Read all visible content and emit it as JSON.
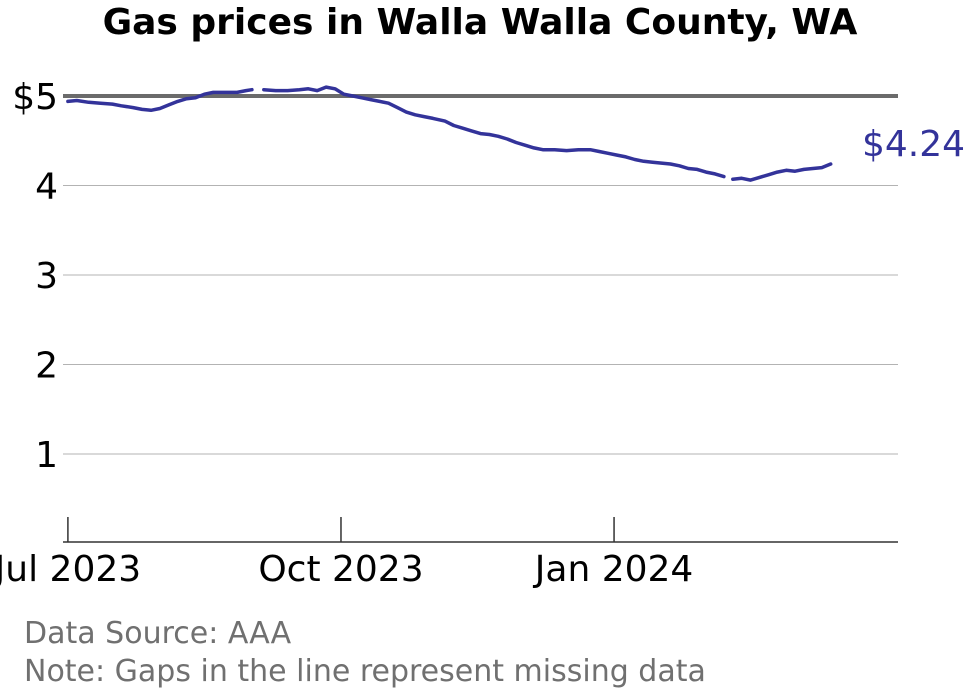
{
  "chart_data": {
    "type": "line",
    "title": "Gas prices in Walla Walla County, WA",
    "xlabel": "",
    "ylabel": "",
    "x_ticks": [
      "Jul 2023",
      "Oct 2023",
      "Jan 2024"
    ],
    "x_tick_dates": [
      "2023-07-01",
      "2023-10-01",
      "2024-01-01"
    ],
    "y_ticks": [
      "1",
      "2",
      "3",
      "4",
      "$5"
    ],
    "y_tick_values": [
      1,
      2,
      3,
      4,
      5
    ],
    "ylim": [
      0,
      5.5
    ],
    "xlim": [
      "2023-06-28",
      "2024-04-06"
    ],
    "reference_line": 5,
    "series": [
      {
        "color": "#33339a",
        "segments": [
          [
            [
              "2023-07-01",
              4.94
            ],
            [
              "2023-07-04",
              4.95
            ],
            [
              "2023-07-08",
              4.93
            ],
            [
              "2023-07-12",
              4.92
            ],
            [
              "2023-07-16",
              4.91
            ],
            [
              "2023-07-19",
              4.89
            ],
            [
              "2023-07-23",
              4.87
            ],
            [
              "2023-07-26",
              4.85
            ],
            [
              "2023-07-29",
              4.84
            ],
            [
              "2023-08-01",
              4.86
            ],
            [
              "2023-08-04",
              4.9
            ],
            [
              "2023-08-07",
              4.94
            ],
            [
              "2023-08-10",
              4.97
            ],
            [
              "2023-08-13",
              4.98
            ],
            [
              "2023-08-16",
              5.02
            ],
            [
              "2023-08-19",
              5.04
            ],
            [
              "2023-08-23",
              5.04
            ],
            [
              "2023-08-27",
              5.04
            ],
            [
              "2023-08-30",
              5.06
            ],
            [
              "2023-09-01",
              5.07
            ]
          ],
          [
            [
              "2023-09-05",
              5.07
            ],
            [
              "2023-09-09",
              5.06
            ],
            [
              "2023-09-13",
              5.06
            ],
            [
              "2023-09-17",
              5.07
            ],
            [
              "2023-09-20",
              5.08
            ],
            [
              "2023-09-23",
              5.06
            ],
            [
              "2023-09-26",
              5.1
            ],
            [
              "2023-09-29",
              5.08
            ],
            [
              "2023-10-02",
              5.02
            ],
            [
              "2023-10-05",
              5.0
            ],
            [
              "2023-10-08",
              4.98
            ],
            [
              "2023-10-11",
              4.96
            ],
            [
              "2023-10-14",
              4.94
            ],
            [
              "2023-10-17",
              4.92
            ],
            [
              "2023-10-20",
              4.87
            ],
            [
              "2023-10-23",
              4.82
            ],
            [
              "2023-10-26",
              4.79
            ],
            [
              "2023-10-29",
              4.77
            ],
            [
              "2023-11-01",
              4.75
            ],
            [
              "2023-11-05",
              4.72
            ],
            [
              "2023-11-08",
              4.67
            ],
            [
              "2023-11-11",
              4.64
            ],
            [
              "2023-11-14",
              4.61
            ],
            [
              "2023-11-17",
              4.58
            ],
            [
              "2023-11-20",
              4.57
            ],
            [
              "2023-11-23",
              4.55
            ],
            [
              "2023-11-26",
              4.52
            ],
            [
              "2023-11-29",
              4.48
            ],
            [
              "2023-12-02",
              4.45
            ],
            [
              "2023-12-05",
              4.42
            ],
            [
              "2023-12-08",
              4.4
            ],
            [
              "2023-12-12",
              4.4
            ],
            [
              "2023-12-16",
              4.39
            ],
            [
              "2023-12-20",
              4.4
            ],
            [
              "2023-12-24",
              4.4
            ],
            [
              "2023-12-27",
              4.38
            ],
            [
              "2023-12-30",
              4.36
            ],
            [
              "2024-01-02",
              4.34
            ],
            [
              "2024-01-05",
              4.32
            ],
            [
              "2024-01-08",
              4.29
            ],
            [
              "2024-01-11",
              4.27
            ],
            [
              "2024-01-14",
              4.26
            ],
            [
              "2024-01-17",
              4.25
            ],
            [
              "2024-01-20",
              4.24
            ],
            [
              "2024-01-23",
              4.22
            ],
            [
              "2024-01-26",
              4.19
            ],
            [
              "2024-01-29",
              4.18
            ],
            [
              "2024-02-01",
              4.15
            ],
            [
              "2024-02-04",
              4.13
            ],
            [
              "2024-02-07",
              4.1
            ]
          ],
          [
            [
              "2024-02-10",
              4.07
            ],
            [
              "2024-02-13",
              4.08
            ],
            [
              "2024-02-16",
              4.06
            ],
            [
              "2024-02-19",
              4.09
            ],
            [
              "2024-02-22",
              4.12
            ],
            [
              "2024-02-25",
              4.15
            ],
            [
              "2024-02-28",
              4.17
            ],
            [
              "2024-03-02",
              4.16
            ],
            [
              "2024-03-05",
              4.18
            ],
            [
              "2024-03-08",
              4.19
            ],
            [
              "2024-03-11",
              4.2
            ],
            [
              "2024-03-14",
              4.24
            ]
          ]
        ]
      }
    ],
    "end_label": "$4.24"
  },
  "footer": {
    "source": "Data Source: AAA",
    "note": "Note: Gaps in the line represent missing data"
  }
}
